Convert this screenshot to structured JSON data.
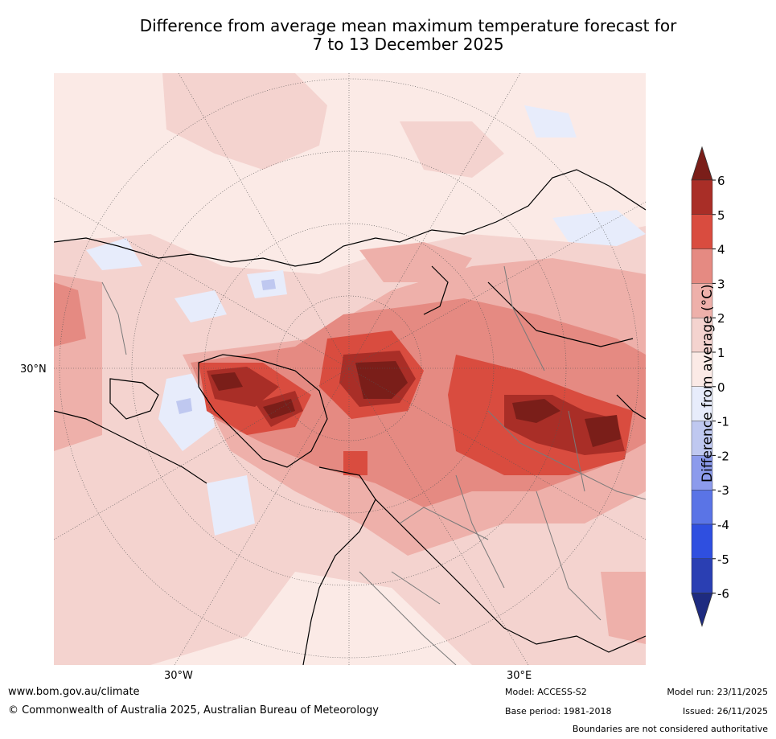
{
  "title_line1": "Difference from average mean maximum temperature forecast for",
  "title_line2": "7 to 13 December 2025",
  "map": {
    "axis_labels": {
      "lat_30n": "30°N",
      "lon_30w": "30°W",
      "lon_30e": "30°E"
    },
    "colors": {
      "background": "#fbeae6",
      "level_1_2": "#f4d3cf",
      "level_2_3": "#eeb0aa",
      "level_3_4": "#e58a82",
      "level_4_5": "#d94c3f",
      "level_5_6": "#a92e27",
      "level_6plus": "#7a1e19",
      "level_0_m1": "#e7ecfb",
      "level_m1_m2": "#bfc8f0",
      "coast": "#000000",
      "border": "#7a7a7a"
    }
  },
  "colorbar": {
    "title": "Difference from average (°C)",
    "tick_labels": [
      "6",
      "5",
      "4",
      "3",
      "2",
      "1",
      "0",
      "-1",
      "-2",
      "-3",
      "-4",
      "-5",
      "-6"
    ],
    "colors": [
      "#7a1e19",
      "#a92e27",
      "#d94c3f",
      "#e58a82",
      "#eeb0aa",
      "#f4d3cf",
      "#fbeae6",
      "#e7ecfb",
      "#bfc8f0",
      "#8c9bec",
      "#5a74e6",
      "#2f4fe0",
      "#2a3fb3",
      "#1e2b80"
    ]
  },
  "footer": {
    "website": "www.bom.gov.au/climate",
    "copyright": "© Commonwealth of Australia 2025, Australian Bureau of Meteorology",
    "model": "Model: ACCESS-S2",
    "base_period": "Base period: 1981-2018",
    "model_run": "Model run: 23/11/2025",
    "issued": "Issued: 26/11/2025",
    "disclaimer": "Boundaries are not considered authoritative"
  }
}
